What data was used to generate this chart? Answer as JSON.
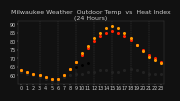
{
  "title": "Milwaukee Weather  Outdoor Temp  vs  Heat Index\n(24 Hours)",
  "bg_color": "#111111",
  "plot_bg_color": "#111111",
  "text_color": "#cccccc",
  "grid_color": "#444444",
  "temp_color": "#ff2200",
  "heat_color": "#ff9900",
  "ylim": [
    55,
    92
  ],
  "yticks": [
    60,
    65,
    70,
    75,
    80,
    85,
    90
  ],
  "hours": [
    0,
    1,
    2,
    3,
    4,
    5,
    6,
    7,
    8,
    9,
    10,
    11,
    12,
    13,
    14,
    15,
    16,
    17,
    18,
    19,
    20,
    21,
    22,
    23
  ],
  "temp": [
    63,
    62,
    61,
    60,
    59,
    58,
    58,
    60,
    64,
    68,
    72,
    76,
    80,
    83,
    85,
    86,
    85,
    83,
    81,
    78,
    75,
    72,
    70,
    68
  ],
  "heat": [
    63,
    62,
    61,
    60,
    59,
    58,
    58,
    60,
    64,
    68,
    73,
    77,
    82,
    85,
    88,
    89,
    88,
    85,
    82,
    78,
    74,
    71,
    69,
    67
  ],
  "dew": [
    62,
    61,
    60,
    59,
    58,
    57,
    57,
    59,
    60,
    61,
    61,
    62,
    62,
    63,
    63,
    62,
    62,
    63,
    64,
    63,
    62,
    61,
    61,
    61
  ],
  "title_fontsize": 4.5,
  "tick_fontsize": 3.5,
  "marker_size": 1.5
}
